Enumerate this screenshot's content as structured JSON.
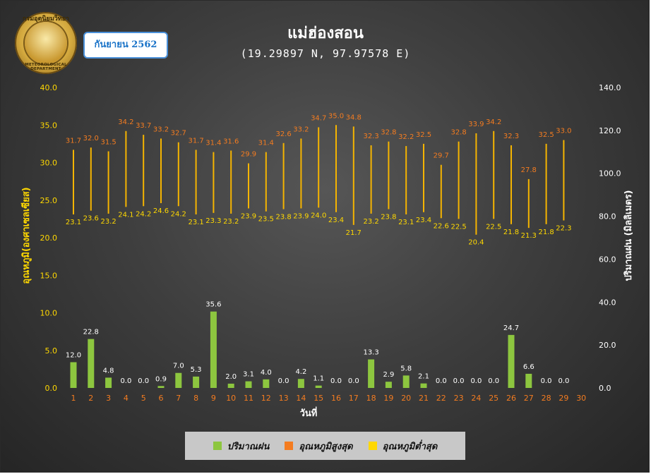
{
  "header": {
    "title": "แม่ฮ่องสอน",
    "coords": "(19.29897 N, 97.97578 E)",
    "date_label": "กันยายน 2562"
  },
  "logo": {
    "top_text": "กรมอุตุนิยมวิทยา",
    "bottom_text": "METEOROLOGICAL DEPARTMENT"
  },
  "colors": {
    "rain": "#8dc63f",
    "tmax": "#f47c20",
    "tmin": "#ffd800",
    "range_bar": "#f5b400",
    "axis_left": "#ffd800",
    "axis_bottom": "#f47c20"
  },
  "chart_data": {
    "type": "bar",
    "x": [
      1,
      2,
      3,
      4,
      5,
      6,
      7,
      8,
      9,
      10,
      11,
      12,
      13,
      14,
      15,
      16,
      17,
      18,
      19,
      20,
      21,
      22,
      23,
      24,
      25,
      26,
      27,
      28,
      29,
      30
    ],
    "xlabel": "วันที่",
    "ylabel_left": "อุณหภูมิ(องศาเซลเซียส)",
    "ylabel_right": "ปริมาณฝน (มิลลิเมตร)",
    "ylim_left": [
      0,
      40
    ],
    "ylim_right": [
      0,
      140
    ],
    "yticks_left": [
      "0.0",
      "5.0",
      "10.0",
      "15.0",
      "20.0",
      "25.0",
      "30.0",
      "35.0",
      "40.0"
    ],
    "yticks_right": [
      "0.0",
      "20.0",
      "40.0",
      "60.0",
      "80.0",
      "100.0",
      "120.0",
      "140.0"
    ],
    "series": [
      {
        "name": "ปริมาณฝน",
        "axis": "right",
        "type": "bar",
        "values": [
          12.0,
          22.8,
          4.8,
          0.0,
          0.0,
          0.9,
          7.0,
          5.3,
          35.6,
          2.0,
          3.1,
          4.0,
          0.0,
          4.2,
          1.1,
          0.0,
          0.0,
          13.3,
          2.9,
          5.8,
          2.1,
          0.0,
          0.0,
          0.0,
          0.0,
          24.7,
          6.6,
          0.0,
          0.0,
          null
        ]
      },
      {
        "name": "อุณหภูมิสูงสุด",
        "axis": "left",
        "type": "range-high",
        "values": [
          31.7,
          32.0,
          31.5,
          34.2,
          33.7,
          33.2,
          32.7,
          31.7,
          31.4,
          31.6,
          29.9,
          31.4,
          32.6,
          33.2,
          34.7,
          35.0,
          34.8,
          32.3,
          32.8,
          32.2,
          32.5,
          29.7,
          32.8,
          33.9,
          34.2,
          32.3,
          27.8,
          32.5,
          33.0,
          null
        ]
      },
      {
        "name": "อุณหภูมิต่ำสุด",
        "axis": "left",
        "type": "range-low",
        "values": [
          23.1,
          23.6,
          23.2,
          24.1,
          24.2,
          24.6,
          24.2,
          23.1,
          23.3,
          23.2,
          23.9,
          23.5,
          23.8,
          23.9,
          24.0,
          23.4,
          21.7,
          23.2,
          23.8,
          23.1,
          23.4,
          22.6,
          22.5,
          20.4,
          22.5,
          21.8,
          21.3,
          21.8,
          22.3,
          null
        ]
      }
    ],
    "legend": "bottom",
    "grid": false
  },
  "legend": {
    "items": [
      {
        "label": "ปริมาณฝน"
      },
      {
        "label": "อุณหภูมิสูงสุด"
      },
      {
        "label": "อุณหภูมิต่ำสุด"
      }
    ]
  }
}
